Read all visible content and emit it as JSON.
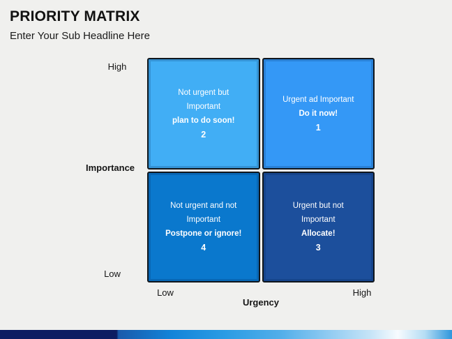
{
  "slide": {
    "title": "PRIORITY MATRIX",
    "subtitle": "Enter Your Sub Headline Here",
    "background_color": "#f0f0ee",
    "text_color": "#121212"
  },
  "matrix": {
    "border_color": "#10161c",
    "quadrant_text_color": "#ffffff",
    "y_axis": {
      "label": "Importance",
      "top_tick": "High",
      "bottom_tick": "Low"
    },
    "x_axis": {
      "label": "Urgency",
      "left_tick": "Low",
      "right_tick": "High"
    },
    "quadrants": [
      {
        "position": "top-left",
        "text": "Not urgent but\nImportant",
        "action": "plan to do soon!",
        "number": "2",
        "color": "#41aef5"
      },
      {
        "position": "top-right",
        "text": "Urgent ad Important",
        "action": "Do it now!",
        "number": "1",
        "color": "#3498f6"
      },
      {
        "position": "bottom-left",
        "text": "Not urgent and not\nImportant",
        "action": "Postpone or ignore!",
        "number": "4",
        "color": "#0a78cd"
      },
      {
        "position": "bottom-right",
        "text": "Urgent but not\nImportant",
        "action": "Allocate!",
        "number": "3",
        "color": "#1c4f9c"
      }
    ]
  },
  "footer": {
    "gradient_colors": [
      "#0d1d62",
      "#1a5aab",
      "#1284d9",
      "#2c9ce4",
      "#51aee9",
      "#8cc9f1",
      "#c6e4f7",
      "#f7fbfe",
      "#b5ddf4",
      "#2e96dc"
    ]
  }
}
